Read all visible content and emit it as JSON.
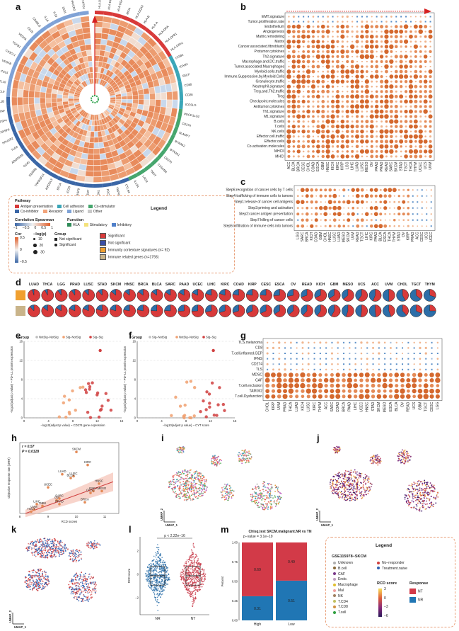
{
  "panels": {
    "a": "a",
    "b": "b",
    "c": "c",
    "d": "d",
    "e": "e",
    "f": "f",
    "g": "g",
    "h": "h",
    "i": "i",
    "j": "j",
    "k": "k",
    "l": "l",
    "m": "m"
  },
  "circos": {
    "genes_left": [
      "ENTPD1",
      "HAVCR2",
      "IDO1",
      "IL10",
      "IL1A",
      "CD40LG",
      "CD70",
      "VEGFA",
      "TGFB1",
      "CX3CL1",
      "VEGFB",
      "CCL5",
      "CXCL10",
      "CXCL9",
      "IL1B",
      "TNF",
      "TNFSF4",
      "TNFSF9",
      "HAVCR2",
      "TLR4",
      "ADORA2A",
      "CD40",
      "EDNRB",
      "TNFRSF14",
      "KIR2DL3",
      "BTLA",
      "ICOS",
      "TNFRSF9",
      "CD27",
      "TNFRSF4",
      "PDCD1",
      "TNFRSF18",
      "CTLA4"
    ],
    "genes_right": [
      "HLA-DRB5",
      "HLA-DQB1",
      "HLA-DQA1",
      "MICA",
      "HLA-DQA2",
      "HLA-B",
      "HLA-A",
      "HLA-DRA",
      "HLA-DPB1",
      "HLA-DPA1",
      "ITGB2",
      "ICAM1",
      "SELP",
      "CD80",
      "CD28",
      "ICOSLG",
      "PDCD1LG2",
      "CD274",
      "SLAMF7",
      "BTN3A2",
      "BTN3A1",
      "CD276",
      "C10orf54",
      "TIGIT",
      "LAG3",
      "IL12A"
    ]
  },
  "legend_a": {
    "title": "Legend",
    "pathway_title": "Pathway",
    "pathways": [
      {
        "label": "Antigen presentation",
        "color": "#d83a3a"
      },
      {
        "label": "Cell adhesion",
        "color": "#3aa6b8"
      },
      {
        "label": "Co-stimulator",
        "color": "#46a66d"
      },
      {
        "label": "Co-inhibitor",
        "color": "#3a66a6"
      },
      {
        "label": "Receptor",
        "color": "#f2a37a"
      },
      {
        "label": "Ligand",
        "color": "#7fa2d6"
      },
      {
        "label": "Other",
        "color": "#c9c9c9"
      }
    ],
    "spearman_title": "Corelation Spearman",
    "spearman_ticks": [
      "−1",
      "−0.5",
      "0",
      "0.5",
      "1"
    ],
    "function_title": "Function",
    "functions": [
      {
        "label": "HLA",
        "color": "#2e8b57"
      },
      {
        "label": "Stimulatory",
        "color": "#f4e27a"
      },
      {
        "label": "Inhibitory",
        "color": "#4f7fc9"
      }
    ],
    "cor_title": "Cor",
    "cor_ticks": [
      "0.5",
      "0",
      "−0.5"
    ],
    "logp_title": "−log(p)",
    "logp_values": [
      "10",
      "20",
      "30"
    ],
    "group_title": "Group",
    "group_items": [
      "Not significant",
      "Significant"
    ],
    "sig_items": [
      {
        "label": "Significant",
        "color": "#d83a3a"
      },
      {
        "label": "Not significant",
        "color": "#3a4fa6"
      },
      {
        "label": "Immunity contexture signatures  (n= 92)",
        "color": "#f0a030"
      },
      {
        "label": "Immune related genes  (n=1793)",
        "color": "#c9b48a"
      }
    ]
  },
  "panel_b": {
    "rows": [
      "EMT.signature",
      "Tumor.proliferation.rate",
      "Endothelium",
      "Angiogenesis",
      "Matrix.remodeling",
      "Matrix",
      "Cancer.associated.fibroblasts",
      "Protumor.cytokines",
      "Th2.signature",
      "Macrophage.and.DC.traffic",
      "Tumor.associated.Macrophages",
      "Myeloid.cells.traffic",
      "Immune.Suppression.by.Myeloid.Cells",
      "Granulocyte.traffic",
      "Neutrophil.signature",
      "Treg.and.Th2.traffic",
      "Treg",
      "Checkpoint.molecules",
      "Antitumor.cytokines",
      "Th1.signature",
      "M1.signature",
      "B.cells",
      "T.cells",
      "NK.cells",
      "Effector.cell.traffic",
      "Effector.cells",
      "Co.activation.molecules",
      "MHCII",
      "MHCI"
    ],
    "cols": [
      "ACC",
      "BLCA",
      "BRCA",
      "CESC",
      "CHOL",
      "COAD",
      "ESCA",
      "GBM",
      "HNSC",
      "KICH",
      "KIRC",
      "KIRP",
      "LGG",
      "LIHC",
      "LUAD",
      "LUSC",
      "MESO",
      "OV",
      "PAAD",
      "PRAD",
      "READ",
      "SARC",
      "SKCM",
      "STAD",
      "TGCT",
      "THCA",
      "THYM",
      "UCEC",
      "UCS",
      "UVM"
    ]
  },
  "panel_c": {
    "rows": [
      "Step6:recognition of cancer cells by T cells",
      "Step4:trafficking of immune cells to tumors",
      "Step1:release of cancer cell antigens",
      "Step3:priming and activation",
      "Step2:cancer antigen presentation",
      "Step7:killing of cancer cells",
      "Step5:infiltration of immune cells into tumors"
    ],
    "cols": [
      "LGG",
      "SARC",
      "BRCA",
      "KICH",
      "COAD",
      "GBM",
      "CHOL",
      "HNSC",
      "LUSC",
      "LUAD",
      "MESO",
      "SKCM",
      "UVM",
      "READ",
      "TGCT",
      "LIHC",
      "KIRC",
      "PAAD",
      "BLCA",
      "ESCA",
      "THCA",
      "THYM",
      "STAD",
      "OV",
      "KIRP",
      "PRAD",
      "ACC",
      "CESC",
      "UCS",
      "UCEC"
    ]
  },
  "panel_d": {
    "cancers": [
      "LUAD",
      "THCA",
      "LGG",
      "PRAD",
      "LUSC",
      "STAD",
      "SKCM",
      "HNSC",
      "BRCA",
      "BLCA",
      "SARC",
      "PAAD",
      "UCEC",
      "LIHC",
      "KIRC",
      "COAD",
      "KIRP",
      "CESC",
      "ESCA",
      "OV",
      "READ",
      "KICH",
      "GBM",
      "MESO",
      "UCS",
      "ACC",
      "UVM",
      "CHOL",
      "TGCT",
      "THYM"
    ],
    "sig_frac_row1": [
      0.95,
      0.92,
      0.9,
      0.9,
      0.88,
      0.88,
      0.86,
      0.86,
      0.85,
      0.85,
      0.84,
      0.83,
      0.82,
      0.8,
      0.8,
      0.78,
      0.78,
      0.76,
      0.74,
      0.72,
      0.7,
      0.68,
      0.66,
      0.64,
      0.6,
      0.56,
      0.5,
      0.42,
      0.36,
      0.3
    ],
    "sig_frac_row2": [
      0.88,
      0.86,
      0.84,
      0.82,
      0.82,
      0.8,
      0.8,
      0.78,
      0.78,
      0.76,
      0.76,
      0.74,
      0.74,
      0.72,
      0.7,
      0.7,
      0.68,
      0.68,
      0.66,
      0.64,
      0.62,
      0.6,
      0.58,
      0.55,
      0.52,
      0.48,
      0.44,
      0.38,
      0.32,
      0.25
    ],
    "row_colors": [
      "#f0a030",
      "#c9b48a"
    ]
  },
  "panel_e": {
    "group_label": "Group",
    "legend": [
      "NotSig−NotSig",
      "Sig−NotSig",
      "Sig−Sig"
    ],
    "xlabel": "−log10(adjust p value) ~ CD274 gene expression",
    "ylabel": "−log10(adjust p value) ~ PD−L1 protein expression",
    "xticks": [
      "0",
      "4",
      "8",
      "12",
      "16"
    ],
    "yticks": [
      "0",
      "4",
      "8",
      "12",
      "16"
    ]
  },
  "panel_f": {
    "group_label": "Group",
    "legend": [
      "Sig−NotSig",
      "NotSig−NotSig",
      "Sig−Sig"
    ],
    "xlabel": "−log10(adjust p value) ~ CYT score",
    "ylabel": "−log10(adjust p value) ~ PD−L1 protein expression",
    "xticks": [
      "0",
      "4",
      "8",
      "12",
      "16"
    ],
    "yticks": [
      "0",
      "4",
      "8",
      "12",
      "16"
    ]
  },
  "panel_g": {
    "rows": [
      "TLS.melanoma",
      "CD8",
      "T.cell.inflamed.GEP",
      "IFNG",
      "CD274",
      "TLS",
      "MDSC",
      "CAF",
      "T.cell.exclusion",
      "TAM.M2",
      "T.cell.Dysfunction"
    ],
    "cols": [
      "CHOL",
      "KIRP",
      "UVM",
      "PRAD",
      "THCA",
      "LUAD",
      "KICH",
      "LUSC",
      "KIRC",
      "THYM",
      "ACC",
      "SARC",
      "COAD",
      "BRCA",
      "PAAD",
      "LIHC",
      "UCEC",
      "HNSC",
      "STAD",
      "SKCM",
      "MESO",
      "ESCA",
      "BLCA",
      "OV",
      "READ",
      "UCS",
      "GBM",
      "TGCT",
      "CESC",
      "LGG"
    ]
  },
  "panel_h": {
    "stats_r": "r = 0.57",
    "stats_p": "P = 0.0128",
    "xlabel": "RCD scores",
    "ylabel": "Objective response rate (ORR)",
    "xticks": [
      "8",
      "9",
      "10",
      "11"
    ],
    "points": [
      {
        "label": "SKCM",
        "x": 10.0,
        "y": 0.33
      },
      {
        "label": "KIRC",
        "x": 10.4,
        "y": 0.26
      },
      {
        "label": "LUSC",
        "x": 9.9,
        "y": 0.2
      },
      {
        "label": "LUAD",
        "x": 9.5,
        "y": 0.21
      },
      {
        "label": "BLCA",
        "x": 9.8,
        "y": 0.19
      },
      {
        "label": "UCEC",
        "x": 9.0,
        "y": 0.14
      },
      {
        "label": "HNSC",
        "x": 10.8,
        "y": 0.16
      },
      {
        "label": "MESO",
        "x": 10.9,
        "y": 0.12
      },
      {
        "label": "ESCA",
        "x": 10.6,
        "y": 0.12
      },
      {
        "label": "CESC",
        "x": 10.5,
        "y": 0.11
      },
      {
        "label": "SARC",
        "x": 9.4,
        "y": 0.08
      },
      {
        "label": "BRCA",
        "x": 10.3,
        "y": 0.06
      },
      {
        "label": "OV",
        "x": 9.3,
        "y": 0.07
      },
      {
        "label": "LIHC",
        "x": 8.6,
        "y": 0.05
      },
      {
        "label": "GBM",
        "x": 8.8,
        "y": 0.04
      },
      {
        "label": "UVM",
        "x": 8.5,
        "y": 0.02
      },
      {
        "label": "PRAD",
        "x": 9.4,
        "y": 0.05
      },
      {
        "label": "TGCT",
        "x": 8.4,
        "y": 0.01
      }
    ]
  },
  "umap": {
    "xlabel": "UMAP_1",
    "ylabel": "UMAP_2"
  },
  "panel_l": {
    "ylabel": "RCD score",
    "groups": [
      "NR",
      "NT"
    ],
    "pval": "p < 2.22e−16",
    "yticks": [
      "−2",
      "0",
      "2"
    ]
  },
  "panel_m": {
    "title": "Chisq.test  SKCM.malignant.NR vs TN",
    "subtitle": "p−value = 3.1e−19",
    "ylabel": "Percent",
    "categories": [
      "High",
      "Low"
    ],
    "yticks": [
      "0.00",
      "0.25",
      "0.50",
      "0.75",
      "1.00"
    ],
    "chart_data": {
      "type": "bar",
      "categories": [
        "High",
        "Low"
      ],
      "series": [
        {
          "name": "NT",
          "values": [
            0.69,
            0.49
          ]
        },
        {
          "name": "NR",
          "values": [
            0.31,
            0.51
          ]
        }
      ],
      "ylabel": "Percent",
      "ylim": [
        0,
        1
      ]
    },
    "labels_top": [
      "0.69",
      "0.49"
    ],
    "labels_bottom": [
      "0.31",
      "0.51"
    ]
  },
  "legend_m": {
    "title": "Legend",
    "dataset": "GSE115978−SKCM",
    "celltypes": [
      {
        "label": "Unknown",
        "color": "#b0b0b0"
      },
      {
        "label": "B.cell",
        "color": "#8a6a3a"
      },
      {
        "label": "CAF",
        "color": "#7a3a8a"
      },
      {
        "label": "Endo.",
        "color": "#c0a0c0"
      },
      {
        "label": "Macrophage",
        "color": "#e0c030"
      },
      {
        "label": "Mal",
        "color": "#f0a0a0"
      },
      {
        "label": "NK",
        "color": "#a08060"
      },
      {
        "label": "T.CD4",
        "color": "#c0c060"
      },
      {
        "label": "T.CD8",
        "color": "#d09040"
      },
      {
        "label": "T.cell",
        "color": "#30a040"
      }
    ],
    "resp_items": [
      {
        "label": "No−responder",
        "color": "#d04040"
      },
      {
        "label": "Treatment.naive",
        "color": "#3060b0"
      }
    ],
    "score_title": "RCD score",
    "score_ticks": [
      "3",
      "0",
      "−3",
      "−6"
    ],
    "response_title": "Response",
    "responses": [
      {
        "label": "NT",
        "color": "#d23a48"
      },
      {
        "label": "NR",
        "color": "#2076b4"
      }
    ]
  }
}
